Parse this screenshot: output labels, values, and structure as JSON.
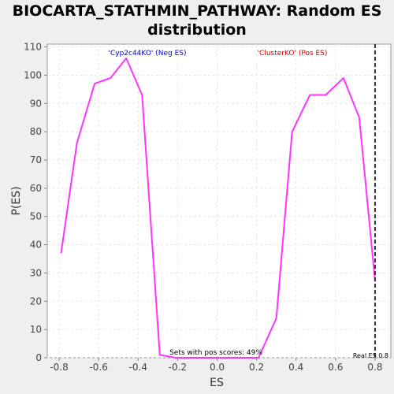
{
  "chart_data": {
    "type": "line",
    "title_line1": "BIOCARTA_STATHMIN_PATHWAY: Random ES",
    "title_line2": "distribution",
    "xlabel": "ES",
    "ylabel": "P(ES)",
    "xlim": [
      -0.86,
      0.88
    ],
    "ylim": [
      0,
      111
    ],
    "x_ticks": [
      "-0.8",
      "-0.6",
      "-0.4",
      "-0.2",
      "0.0",
      "0.2",
      "0.4",
      "0.6",
      "0.8"
    ],
    "x_tick_values": [
      -0.8,
      -0.6,
      -0.4,
      -0.2,
      0.0,
      0.2,
      0.4,
      0.6,
      0.8
    ],
    "y_ticks": [
      "0",
      "10",
      "20",
      "30",
      "40",
      "50",
      "60",
      "70",
      "80",
      "90",
      "100",
      "110"
    ],
    "y_tick_values": [
      0,
      10,
      20,
      30,
      40,
      50,
      60,
      70,
      80,
      90,
      100,
      110
    ],
    "grid": true,
    "series": [
      {
        "color": "#ff33ff",
        "x": [
          -0.79,
          -0.71,
          -0.62,
          -0.54,
          -0.46,
          -0.38,
          -0.29,
          -0.21,
          -0.13,
          -0.04,
          0.04,
          0.13,
          0.21,
          0.3,
          0.38,
          0.47,
          0.55,
          0.64,
          0.72,
          0.8
        ],
        "y": [
          37,
          76,
          97,
          99,
          106,
          93,
          1,
          0,
          0,
          0,
          0,
          0,
          0,
          14,
          80,
          93,
          93,
          99,
          85,
          27
        ]
      }
    ],
    "annotations": {
      "neg_label": "'Cyp2c44KO' (Neg ES)",
      "neg_color": "#0000cc",
      "pos_label": "'ClusterKO' (Pos ES)",
      "pos_color": "#cc0000",
      "pos_scores_text": "Sets with pos scores: 49%",
      "real_es_text": "Real ES 0.8",
      "real_es_value": 0.8
    }
  }
}
